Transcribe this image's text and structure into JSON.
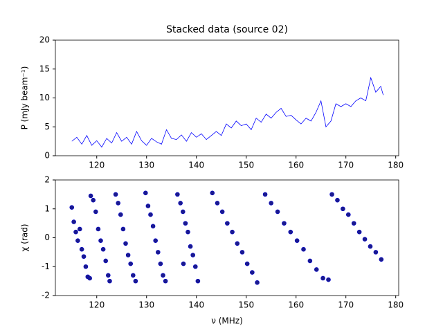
{
  "chart_data": [
    {
      "type": "line",
      "title": "Stacked data (source 02)",
      "ylabel": "P (mJy beam⁻¹)",
      "xlim": [
        111.7,
        180.6
      ],
      "ylim": [
        0,
        20
      ],
      "xticks": [
        120,
        130,
        140,
        150,
        160,
        170,
        180
      ],
      "yticks": [
        0,
        5,
        10,
        15,
        20
      ],
      "series": [
        {
          "color": "#0000ff",
          "x": [
            115,
            116,
            117,
            118,
            119,
            120,
            121,
            122,
            123,
            124,
            125,
            126,
            127,
            128,
            129,
            130,
            131,
            132,
            133,
            134,
            135,
            136,
            137,
            138,
            139,
            140,
            141,
            142,
            143,
            144,
            145,
            146,
            147,
            148,
            149,
            150,
            151,
            152,
            153,
            154,
            155,
            156,
            157,
            158,
            159,
            160,
            161,
            162,
            163,
            164,
            165,
            166,
            167,
            168,
            169,
            170,
            171,
            172,
            173,
            174,
            175,
            176,
            177,
            177.5
          ],
          "values": [
            2.5,
            3.2,
            2.0,
            3.5,
            1.8,
            2.6,
            1.5,
            3.0,
            2.2,
            4.0,
            2.5,
            3.2,
            2.0,
            4.2,
            2.6,
            1.8,
            3.0,
            2.4,
            2.0,
            4.5,
            3.0,
            2.8,
            3.6,
            2.5,
            4.0,
            3.2,
            3.8,
            2.8,
            3.5,
            4.2,
            3.5,
            5.5,
            4.8,
            6.0,
            5.2,
            5.5,
            4.5,
            6.5,
            5.8,
            7.2,
            6.5,
            7.5,
            8.2,
            6.8,
            7.0,
            6.2,
            5.5,
            6.5,
            6.0,
            7.5,
            9.5,
            5.0,
            6.0,
            9.0,
            8.5,
            9.0,
            8.5,
            9.5,
            10.0,
            9.5,
            13.5,
            11.0,
            12.0,
            10.5
          ]
        }
      ]
    },
    {
      "type": "scatter",
      "xlabel": "ν (MHz)",
      "ylabel": "χ (rad)",
      "xlim": [
        111.7,
        180.6
      ],
      "ylim": [
        -2,
        2
      ],
      "xticks": [
        120,
        130,
        140,
        150,
        160,
        170,
        180
      ],
      "yticks": [
        -2,
        -1,
        0,
        1,
        2
      ],
      "series": [
        {
          "color": "#1a1a8c",
          "x": [
            115,
            115.4,
            115.8,
            116.2,
            116.6,
            117,
            117.4,
            117.8,
            118.2,
            118.6,
            118.8,
            119.3,
            119.8,
            120.3,
            120.8,
            121.3,
            121.8,
            122.3,
            122.6,
            123.8,
            124.3,
            124.8,
            125.3,
            125.8,
            126.3,
            126.8,
            127.3,
            127.8,
            129.8,
            130.3,
            130.8,
            131.3,
            131.8,
            132.3,
            132.8,
            133.3,
            133.8,
            136.2,
            136.8,
            137.3,
            137.8,
            138.3,
            138.8,
            139.3,
            139.8,
            140.3,
            137.4,
            143.2,
            144.2,
            145.2,
            146.2,
            147.2,
            148.2,
            149.2,
            150.2,
            151.2,
            152.2,
            153.8,
            155,
            156.3,
            157.6,
            158.9,
            160.2,
            161.5,
            162.8,
            164.1,
            165.4,
            166.5,
            167.2,
            168.3,
            169.4,
            170.5,
            171.6,
            172.7,
            173.8,
            174.9,
            176,
            177.1
          ],
          "values": [
            1.05,
            0.55,
            0.2,
            -0.1,
            0.3,
            -0.4,
            -0.65,
            -1.0,
            -1.35,
            -1.4,
            1.45,
            1.3,
            0.9,
            0.3,
            -0.1,
            -0.4,
            -0.8,
            -1.3,
            -1.5,
            1.5,
            1.2,
            0.8,
            0.3,
            -0.2,
            -0.6,
            -0.9,
            -1.3,
            -1.5,
            1.55,
            1.1,
            0.8,
            0.4,
            -0.1,
            -0.5,
            -0.9,
            -1.3,
            -1.5,
            1.5,
            1.2,
            0.9,
            0.5,
            0.2,
            -0.3,
            -0.6,
            -1.0,
            -1.5,
            -0.9,
            1.55,
            1.2,
            0.9,
            0.5,
            0.2,
            -0.2,
            -0.5,
            -0.9,
            -1.2,
            -1.55,
            1.5,
            1.2,
            0.9,
            0.5,
            0.2,
            -0.1,
            -0.4,
            -0.8,
            -1.1,
            -1.4,
            -1.45,
            1.5,
            1.3,
            1.0,
            0.8,
            0.5,
            0.2,
            -0.05,
            -0.3,
            -0.5,
            -0.75
          ]
        }
      ]
    }
  ]
}
